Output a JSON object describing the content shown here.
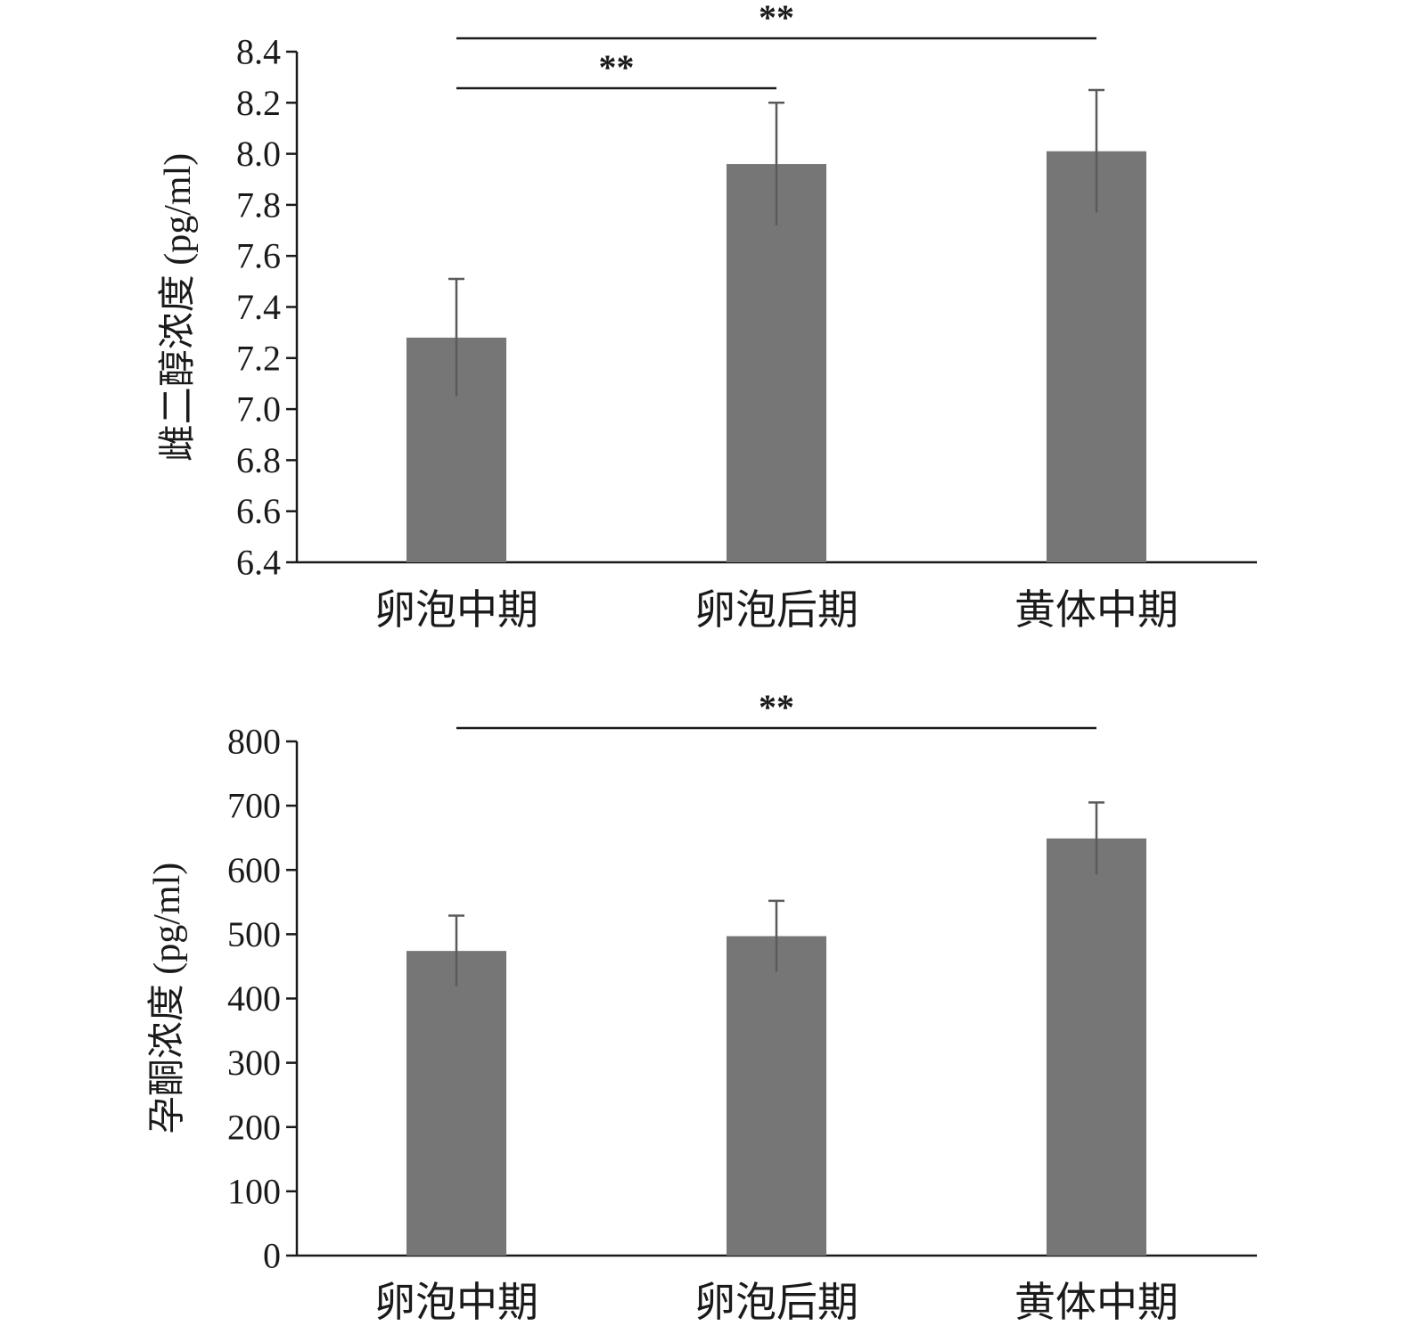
{
  "colors": {
    "bar": "#767676",
    "error_bar": "#5a5a5a",
    "axis": "#1a1a1a"
  },
  "chart_data": [
    {
      "type": "bar",
      "title": "",
      "xlabel": "",
      "ylabel": "雌二醇浓度 (pg/ml)",
      "categories": [
        "卵泡中期",
        "卵泡后期",
        "黄体中期"
      ],
      "values": [
        7.28,
        7.96,
        8.01
      ],
      "error": [
        0.23,
        0.24,
        0.24
      ],
      "ylim": [
        6.4,
        8.4
      ],
      "yticks": [
        "6.4",
        "6.6",
        "6.8",
        "7.0",
        "7.2",
        "7.4",
        "7.6",
        "7.8",
        "8.0",
        "8.2",
        "8.4"
      ],
      "grid": false,
      "significance": [
        {
          "from": 0,
          "to": 2,
          "label": "**"
        },
        {
          "from": 0,
          "to": 1,
          "label": "**"
        }
      ]
    },
    {
      "type": "bar",
      "title": "",
      "xlabel": "",
      "ylabel": "孕酮浓度 (pg/ml)",
      "categories": [
        "卵泡中期",
        "卵泡后期",
        "黄体中期"
      ],
      "values": [
        474,
        497,
        649
      ],
      "error": [
        55,
        55,
        56
      ],
      "ylim": [
        0,
        800
      ],
      "yticks": [
        "0",
        "100",
        "200",
        "300",
        "400",
        "500",
        "600",
        "700",
        "800"
      ],
      "grid": false,
      "significance": [
        {
          "from": 0,
          "to": 2,
          "label": "**"
        }
      ]
    }
  ]
}
